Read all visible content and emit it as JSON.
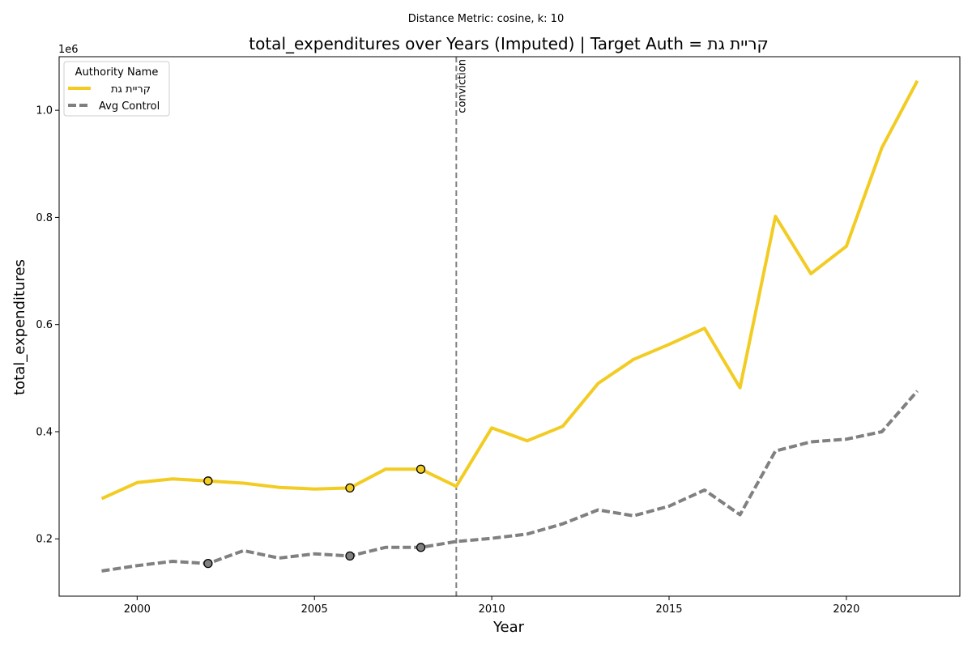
{
  "chart_data": {
    "type": "line",
    "suptitle": "Distance Metric: cosine, k: 10",
    "title": "total_expenditures over Years (Imputed) | Target Auth = קריית גת",
    "xlabel": "Year",
    "ylabel": "total_expenditures",
    "y_offset_label": "1e6",
    "xlim": [
      1997.8,
      2023.2
    ],
    "ylim": [
      0.093,
      1.1
    ],
    "x_ticks": [
      2000,
      2005,
      2010,
      2015,
      2020
    ],
    "y_ticks": [
      0.2,
      0.4,
      0.6,
      0.8,
      1.0
    ],
    "y_tick_labels": [
      "0.2",
      "0.4",
      "0.6",
      "0.8",
      "1.0"
    ],
    "x": [
      1999,
      2000,
      2001,
      2002,
      2003,
      2004,
      2005,
      2006,
      2007,
      2008,
      2009,
      2010,
      2011,
      2012,
      2013,
      2014,
      2015,
      2016,
      2017,
      2018,
      2019,
      2020,
      2021,
      2022
    ],
    "series": [
      {
        "name": "קריית גת",
        "color": "#f2cc22",
        "style": "solid",
        "values": [
          0.275,
          0.305,
          0.312,
          0.308,
          0.304,
          0.296,
          0.293,
          0.295,
          0.33,
          0.33,
          0.298,
          0.407,
          0.383,
          0.41,
          0.49,
          0.535,
          0.563,
          0.593,
          0.482,
          0.802,
          0.695,
          0.746,
          0.93,
          1.055
        ],
        "imputed_x": [
          2002,
          2006,
          2008
        ]
      },
      {
        "name": "Avg Control",
        "color": "#808080",
        "style": "dashed",
        "values": [
          0.14,
          0.15,
          0.158,
          0.154,
          0.178,
          0.164,
          0.172,
          0.168,
          0.184,
          0.184,
          0.195,
          0.201,
          0.209,
          0.228,
          0.254,
          0.243,
          0.261,
          0.291,
          0.245,
          0.364,
          0.381,
          0.386,
          0.4,
          0.476
        ],
        "imputed_x": [
          2002,
          2006,
          2008
        ]
      }
    ],
    "vline": {
      "x": 2009,
      "label": "conviction",
      "color": "#808080"
    },
    "legend": {
      "title": "Authority Name",
      "placement": "upper-left"
    },
    "grid": false
  }
}
